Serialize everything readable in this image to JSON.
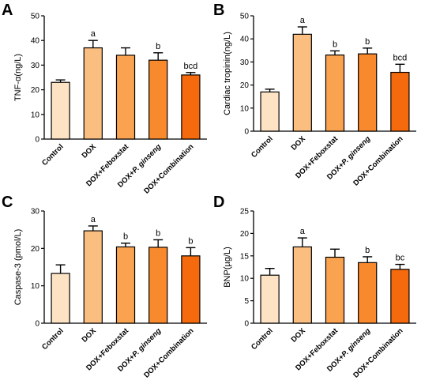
{
  "colors": [
    "#FDE3C4",
    "#FBBE81",
    "#F9A24F",
    "#F8892C",
    "#F46A0C"
  ],
  "chart_data": [
    {
      "type": "bar",
      "panel": "A",
      "ylabel": "TNF-α(ng/L)",
      "ylim": [
        0,
        50
      ],
      "yticks": [
        0,
        10,
        20,
        30,
        40,
        50
      ],
      "categories": [
        "Control",
        "DOX",
        "DOX+Feboxstat",
        "DOX+P. ginseng",
        "DOX+Combination"
      ],
      "values": [
        23,
        37,
        34,
        32,
        26
      ],
      "errors": [
        1,
        3,
        3,
        3,
        1
      ],
      "annotations": [
        "",
        "a",
        "",
        "b",
        "bcd"
      ]
    },
    {
      "type": "bar",
      "panel": "B",
      "ylabel": "Cardiac tropinin(ng/L)",
      "ylim": [
        0,
        50
      ],
      "yticks": [
        0,
        10,
        20,
        30,
        40,
        50
      ],
      "categories": [
        "Control",
        "DOX",
        "DOX+Feboxstat",
        "DOX+P. ginseng",
        "DOX+Combination"
      ],
      "values": [
        17,
        42,
        33,
        33.5,
        25.5
      ],
      "errors": [
        1.2,
        3.2,
        1.8,
        2.5,
        3.5
      ],
      "annotations": [
        "",
        "a",
        "b",
        "b",
        "bcd"
      ]
    },
    {
      "type": "bar",
      "panel": "C",
      "ylabel": "Caspase-3 (pmol/L)",
      "ylim": [
        0,
        30
      ],
      "yticks": [
        0,
        10,
        20,
        30
      ],
      "categories": [
        "Control",
        "DOX",
        "DOX+Feboxstat",
        "DOX+P. ginseng",
        "DOX+Combination"
      ],
      "values": [
        13.3,
        24.7,
        20.4,
        20.3,
        18
      ],
      "errors": [
        2.3,
        1.3,
        1,
        2,
        2.2
      ],
      "annotations": [
        "",
        "a",
        "b",
        "b",
        "b"
      ]
    },
    {
      "type": "bar",
      "panel": "D",
      "ylabel": "BNP(µg/L)",
      "ylim": [
        0,
        25
      ],
      "yticks": [
        0,
        5,
        10,
        15,
        20,
        25
      ],
      "categories": [
        "Control",
        "DOX",
        "DOX+Feboxstat",
        "DOX+P. ginseng",
        "DOX+Combination"
      ],
      "values": [
        10.7,
        17,
        14.7,
        13.5,
        12
      ],
      "errors": [
        1.5,
        2,
        1.8,
        1.3,
        1.1
      ],
      "annotations": [
        "",
        "a",
        "",
        "b",
        "bc"
      ]
    }
  ]
}
